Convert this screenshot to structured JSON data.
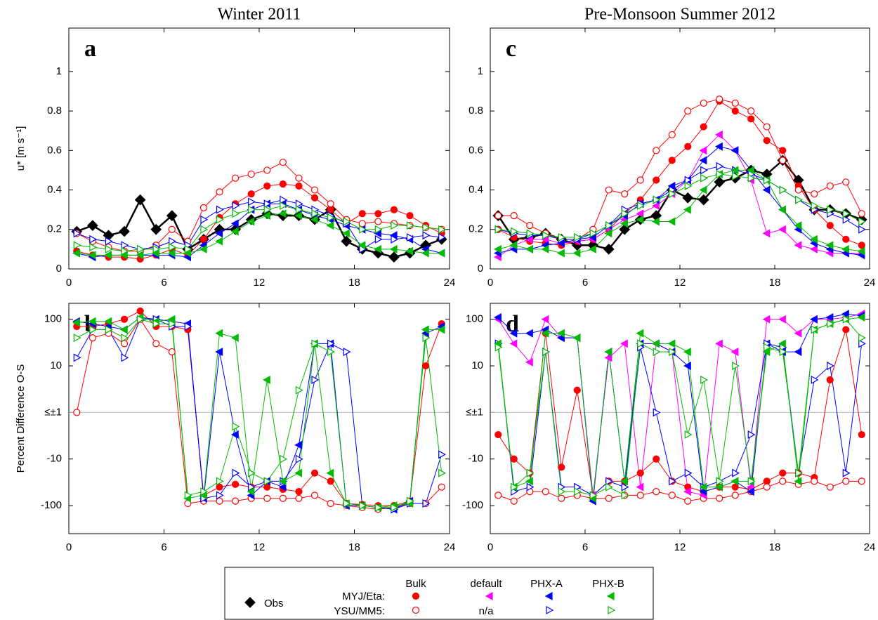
{
  "chart_data": [
    {
      "type": "line",
      "panel": "a",
      "title": "Winter 2011",
      "ylabel": "u* [m s⁻¹]",
      "scale": "linear",
      "xlim": [
        0,
        24
      ],
      "xticks": [
        0,
        6,
        12,
        18,
        24
      ],
      "ylim": [
        0,
        1.22
      ],
      "yticks": [
        0,
        0.2,
        0.4,
        0.6,
        0.8,
        1
      ],
      "x": [
        0.5,
        1.5,
        2.5,
        3.5,
        4.5,
        5.5,
        6.5,
        7.5,
        8.5,
        9.5,
        10.5,
        11.5,
        12.5,
        13.5,
        14.5,
        15.5,
        16.5,
        17.5,
        18.5,
        19.5,
        20.5,
        21.5,
        22.5,
        23.5
      ],
      "series": [
        {
          "color": "#000000",
          "marker": "diamond",
          "filled": true,
          "values": [
            0.19,
            0.22,
            0.17,
            0.19,
            0.35,
            0.2,
            0.27,
            0.1,
            0.15,
            0.2,
            0.2,
            0.25,
            0.28,
            0.27,
            0.27,
            0.25,
            0.3,
            0.14,
            0.1,
            0.08,
            0.06,
            0.08,
            0.12,
            0.15
          ]
        },
        {
          "color": "#ff0000",
          "marker": "circle",
          "filled": true,
          "values": [
            0.09,
            0.07,
            0.06,
            0.06,
            0.05,
            0.07,
            0.1,
            0.07,
            0.15,
            0.26,
            0.33,
            0.38,
            0.42,
            0.43,
            0.42,
            0.36,
            0.3,
            0.23,
            0.28,
            0.28,
            0.3,
            0.27,
            0.22,
            0.18
          ]
        },
        {
          "color": "#ff0000",
          "marker": "circle",
          "filled": false,
          "values": [
            0.18,
            0.14,
            0.11,
            0.09,
            0.09,
            0.12,
            0.2,
            0.14,
            0.31,
            0.39,
            0.46,
            0.48,
            0.5,
            0.54,
            0.46,
            0.4,
            0.33,
            0.25,
            0.23,
            0.24,
            0.23,
            0.22,
            0.21,
            0.2
          ]
        },
        {
          "color": "#0000ff",
          "marker": "tri-left",
          "filled": true,
          "values": [
            0.08,
            0.06,
            0.07,
            0.07,
            0.07,
            0.07,
            0.07,
            0.06,
            0.12,
            0.18,
            0.23,
            0.3,
            0.33,
            0.33,
            0.3,
            0.27,
            0.25,
            0.22,
            0.2,
            0.18,
            0.17,
            0.15,
            0.1,
            0.08
          ]
        },
        {
          "color": "#0000ff",
          "marker": "tri-right",
          "filled": false,
          "values": [
            0.18,
            0.15,
            0.14,
            0.12,
            0.1,
            0.11,
            0.14,
            0.12,
            0.25,
            0.3,
            0.32,
            0.34,
            0.33,
            0.35,
            0.33,
            0.3,
            0.27,
            0.23,
            0.1,
            0.15,
            0.15,
            0.16,
            0.17,
            0.16
          ]
        },
        {
          "color": "#00bb00",
          "marker": "tri-left",
          "filled": true,
          "values": [
            0.08,
            0.07,
            0.07,
            0.07,
            0.07,
            0.08,
            0.08,
            0.08,
            0.1,
            0.14,
            0.19,
            0.24,
            0.27,
            0.28,
            0.27,
            0.25,
            0.22,
            0.18,
            0.12,
            0.1,
            0.1,
            0.09,
            0.08,
            0.08
          ]
        },
        {
          "color": "#00bb00",
          "marker": "tri-right",
          "filled": false,
          "values": [
            0.12,
            0.11,
            0.1,
            0.09,
            0.1,
            0.1,
            0.11,
            0.1,
            0.2,
            0.25,
            0.28,
            0.3,
            0.3,
            0.32,
            0.3,
            0.28,
            0.26,
            0.24,
            0.2,
            0.2,
            0.22,
            0.22,
            0.21,
            0.2
          ]
        }
      ]
    },
    {
      "type": "line",
      "panel": "c",
      "title": "Pre-Monsoon Summer 2012",
      "scale": "linear",
      "xlim": [
        0,
        24
      ],
      "xticks": [
        0,
        6,
        12,
        18,
        24
      ],
      "ylim": [
        0,
        1.22
      ],
      "yticks": [
        0,
        0.2,
        0.4,
        0.6,
        0.8,
        1
      ],
      "x": [
        0.5,
        1.5,
        2.5,
        3.5,
        4.5,
        5.5,
        6.5,
        7.5,
        8.5,
        9.5,
        10.5,
        11.5,
        12.5,
        13.5,
        14.5,
        15.5,
        16.5,
        17.5,
        18.5,
        19.5,
        20.5,
        21.5,
        22.5,
        23.5
      ],
      "series": [
        {
          "color": "#000000",
          "marker": "diamond",
          "filled": true,
          "values": [
            0.27,
            0.15,
            0.16,
            0.18,
            0.15,
            0.12,
            0.12,
            0.1,
            0.2,
            0.25,
            0.27,
            0.4,
            0.36,
            0.35,
            0.44,
            0.46,
            0.5,
            0.48,
            0.55,
            0.45,
            0.3,
            0.3,
            0.28,
            0.25
          ]
        },
        {
          "color": "#ff0000",
          "marker": "circle",
          "filled": true,
          "values": [
            0.2,
            0.16,
            0.14,
            0.13,
            0.12,
            0.14,
            0.15,
            0.2,
            0.28,
            0.35,
            0.45,
            0.55,
            0.62,
            0.72,
            0.85,
            0.8,
            0.76,
            0.65,
            0.6,
            0.42,
            0.3,
            0.22,
            0.15,
            0.12
          ]
        },
        {
          "color": "#ff0000",
          "marker": "circle",
          "filled": false,
          "values": [
            0.27,
            0.27,
            0.22,
            0.18,
            0.15,
            0.15,
            0.2,
            0.4,
            0.38,
            0.45,
            0.6,
            0.68,
            0.8,
            0.84,
            0.86,
            0.84,
            0.8,
            0.72,
            0.55,
            0.4,
            0.38,
            0.42,
            0.44,
            0.28
          ]
        },
        {
          "color": "#ff00ff",
          "marker": "tri-left",
          "filled": true,
          "values": [
            0.06,
            0.12,
            0.15,
            0.15,
            0.13,
            0.14,
            0.15,
            0.2,
            0.25,
            0.28,
            0.32,
            0.38,
            0.45,
            0.6,
            0.68,
            0.6,
            0.45,
            0.18,
            0.2,
            0.12,
            0.1,
            0.08,
            0.08,
            0.08
          ]
        },
        {
          "color": "#0000ff",
          "marker": "tri-left",
          "filled": true,
          "values": [
            0.08,
            0.1,
            0.1,
            0.12,
            0.13,
            0.15,
            0.16,
            0.22,
            0.27,
            0.33,
            0.35,
            0.42,
            0.45,
            0.55,
            0.62,
            0.6,
            0.5,
            0.4,
            0.3,
            0.2,
            0.13,
            0.1,
            0.08,
            0.07
          ]
        },
        {
          "color": "#0000ff",
          "marker": "tri-right",
          "filled": false,
          "values": [
            0.2,
            0.18,
            0.17,
            0.17,
            0.15,
            0.15,
            0.18,
            0.22,
            0.3,
            0.33,
            0.35,
            0.4,
            0.45,
            0.5,
            0.52,
            0.5,
            0.48,
            0.45,
            0.4,
            0.35,
            0.3,
            0.28,
            0.25,
            0.2
          ]
        },
        {
          "color": "#00bb00",
          "marker": "tri-left",
          "filled": true,
          "values": [
            0.1,
            0.12,
            0.1,
            0.1,
            0.08,
            0.08,
            0.1,
            0.18,
            0.23,
            0.25,
            0.24,
            0.24,
            0.3,
            0.4,
            0.48,
            0.5,
            0.5,
            0.45,
            0.3,
            0.22,
            0.15,
            0.12,
            0.1,
            0.09
          ]
        },
        {
          "color": "#00bb00",
          "marker": "tri-right",
          "filled": false,
          "values": [
            0.2,
            0.19,
            0.18,
            0.17,
            0.16,
            0.16,
            0.18,
            0.22,
            0.28,
            0.32,
            0.35,
            0.38,
            0.42,
            0.46,
            0.48,
            0.47,
            0.46,
            0.45,
            0.4,
            0.35,
            0.32,
            0.3,
            0.28,
            0.24
          ]
        }
      ]
    },
    {
      "type": "line",
      "panel": "b",
      "ylabel": "Percent Difference O-S",
      "scale": "symlog",
      "grid": "zero",
      "xlim": [
        0,
        24
      ],
      "xticks": [
        0,
        6,
        12,
        18,
        24
      ],
      "ylim": [
        -400,
        220
      ],
      "yticks": [
        100,
        10,
        {
          "value": 0,
          "label": "≤±1"
        },
        -10,
        -100
      ],
      "x": [
        0.5,
        1.5,
        2.5,
        3.5,
        4.5,
        5.5,
        6.5,
        7.5,
        8.5,
        9.5,
        10.5,
        11.5,
        12.5,
        13.5,
        14.5,
        15.5,
        16.5,
        17.5,
        18.5,
        19.5,
        20.5,
        21.5,
        22.5,
        23.5
      ],
      "series": [
        {
          "color": "#ff0000",
          "marker": "circle",
          "filled": true,
          "values": [
            70,
            70,
            80,
            100,
            150,
            70,
            70,
            60,
            -60,
            -40,
            -35,
            -40,
            -40,
            -45,
            -50,
            -20,
            -30,
            -90,
            -95,
            -100,
            -100,
            -80,
            10,
            80
          ]
        },
        {
          "color": "#ff0000",
          "marker": "circle",
          "filled": false,
          "values": [
            1,
            40,
            50,
            30,
            100,
            30,
            20,
            -90,
            -80,
            -80,
            -80,
            -70,
            -70,
            -70,
            -70,
            -60,
            -90,
            -100,
            -110,
            -120,
            -110,
            -90,
            -90,
            -40
          ]
        },
        {
          "color": "#0000ff",
          "marker": "tri-left",
          "filled": true,
          "values": [
            90,
            80,
            70,
            60,
            110,
            100,
            90,
            80,
            -70,
            20,
            -3,
            -60,
            -30,
            -40,
            -5,
            30,
            30,
            -100,
            -100,
            -110,
            -120,
            -80,
            50,
            70
          ]
        },
        {
          "color": "#0000ff",
          "marker": "tri-right",
          "filled": false,
          "values": [
            15,
            60,
            60,
            15,
            100,
            100,
            70,
            70,
            -70,
            -60,
            -20,
            -40,
            -30,
            -30,
            -10,
            5,
            30,
            20,
            -100,
            -110,
            -120,
            -90,
            -90,
            -8
          ]
        },
        {
          "color": "#00bb00",
          "marker": "tri-left",
          "filled": true,
          "values": [
            85,
            90,
            90,
            60,
            110,
            90,
            100,
            -70,
            -60,
            50,
            40,
            -50,
            5,
            -30,
            -20,
            30,
            -20,
            -90,
            -100,
            -110,
            -100,
            -90,
            60,
            60
          ]
        },
        {
          "color": "#00bb00",
          "marker": "tri-right",
          "filled": false,
          "values": [
            40,
            60,
            60,
            40,
            100,
            80,
            80,
            -60,
            -50,
            -30,
            -2,
            -20,
            -30,
            -10,
            3,
            30,
            20,
            -90,
            -100,
            -110,
            -110,
            -80,
            40,
            -20
          ]
        }
      ]
    },
    {
      "type": "line",
      "panel": "d",
      "scale": "symlog",
      "grid": "zero",
      "xlim": [
        0,
        24
      ],
      "xticks": [
        0,
        6,
        12,
        18,
        24
      ],
      "ylim": [
        -400,
        220
      ],
      "yticks": [
        100,
        10,
        {
          "value": 0,
          "label": "≤±1"
        },
        -10,
        -100
      ],
      "x": [
        0.5,
        1.5,
        2.5,
        3.5,
        4.5,
        5.5,
        6.5,
        7.5,
        8.5,
        9.5,
        10.5,
        11.5,
        12.5,
        13.5,
        14.5,
        15.5,
        16.5,
        17.5,
        18.5,
        19.5,
        20.5,
        21.5,
        22.5,
        23.5
      ],
      "series": [
        {
          "color": "#ff0000",
          "marker": "circle",
          "filled": true,
          "values": [
            -3,
            -10,
            -20,
            50,
            -15,
            3,
            -60,
            -30,
            -30,
            -20,
            -10,
            -30,
            -40,
            -50,
            -40,
            -40,
            -45,
            -30,
            -20,
            -20,
            -25,
            5,
            60,
            -3
          ]
        },
        {
          "color": "#ff0000",
          "marker": "circle",
          "filled": false,
          "values": [
            -60,
            -80,
            -50,
            -50,
            -70,
            -60,
            -70,
            -70,
            -60,
            -60,
            -50,
            -60,
            -80,
            -70,
            -70,
            -60,
            -50,
            -40,
            -30,
            -35,
            -30,
            -40,
            -30,
            -30
          ]
        },
        {
          "color": "#ff00ff",
          "marker": "tri-left",
          "filled": true,
          "values": [
            100,
            30,
            12,
            100,
            40,
            40,
            -60,
            15,
            30,
            -40,
            30,
            20,
            -50,
            -60,
            30,
            20,
            -40,
            100,
            100,
            50,
            100,
            100,
            110,
            130
          ]
        },
        {
          "color": "#0000ff",
          "marker": "tri-left",
          "filled": true,
          "values": [
            110,
            50,
            50,
            60,
            40,
            40,
            -80,
            20,
            -30,
            30,
            30,
            20,
            10,
            -50,
            -40,
            -30,
            -50,
            30,
            20,
            20,
            100,
            110,
            130,
            120
          ]
        },
        {
          "color": "#0000ff",
          "marker": "tri-right",
          "filled": false,
          "values": [
            30,
            -50,
            -40,
            20,
            -40,
            -40,
            -60,
            -30,
            -40,
            25,
            -1,
            -30,
            -20,
            -40,
            -30,
            -20,
            -3,
            30,
            25,
            -20,
            5,
            10,
            -20,
            30
          ]
        },
        {
          "color": "#00bb00",
          "marker": "tri-left",
          "filled": true,
          "values": [
            30,
            -40,
            -30,
            50,
            50,
            40,
            -70,
            20,
            -30,
            50,
            30,
            30,
            20,
            -40,
            -40,
            -30,
            -30,
            20,
            30,
            -30,
            60,
            80,
            100,
            110
          ]
        },
        {
          "color": "#00bb00",
          "marker": "tri-right",
          "filled": false,
          "values": [
            25,
            -40,
            -20,
            20,
            -50,
            -50,
            -60,
            -40,
            -60,
            30,
            20,
            20,
            -3,
            5,
            -30,
            10,
            -30,
            25,
            20,
            -20,
            60,
            80,
            100,
            40
          ]
        }
      ]
    }
  ],
  "legend": {
    "obs": "Obs",
    "rows": [
      "MYJ/Eta:",
      "YSU/MM5:"
    ],
    "columns": [
      "Bulk",
      "default",
      "PHX-A",
      "PHX-B"
    ],
    "na": "n/a"
  }
}
